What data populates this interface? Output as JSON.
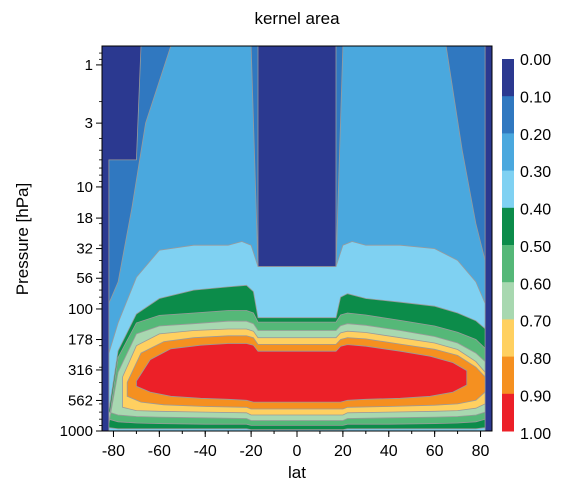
{
  "chart_data": {
    "type": "contour",
    "title": "kernel area",
    "xlabel": "lat",
    "ylabel": "Pressure [hPa]",
    "xlim": [
      -85,
      85
    ],
    "ylim": [
      1000,
      0.7
    ],
    "y_scale": "log",
    "x_ticks": [
      "-80",
      "-60",
      "-40",
      "-20",
      "0",
      "20",
      "40",
      "60",
      "80"
    ],
    "x_tick_values": [
      -80,
      -60,
      -40,
      -20,
      0,
      20,
      40,
      60,
      80
    ],
    "y_ticks": [
      "1",
      "3",
      "10",
      "18",
      "32",
      "56",
      "100",
      "178",
      "316",
      "562",
      "1000"
    ],
    "y_tick_values": [
      1,
      3,
      10,
      18,
      32,
      56,
      100,
      178,
      316,
      562,
      1000
    ],
    "colorbar": {
      "labels": [
        "0.00",
        "0.10",
        "0.20",
        "0.30",
        "0.40",
        "0.50",
        "0.60",
        "0.70",
        "0.80",
        "0.90",
        "1.00"
      ],
      "colors": [
        "#2b3990",
        "#3078c0",
        "#4aa8de",
        "#7fd1f2",
        "#0c8c4a",
        "#55b878",
        "#a8d8b0",
        "#ffd060",
        "#f59020",
        "#ec2028"
      ]
    },
    "contour_levels": [
      {
        "level": 0.1,
        "color": "#3078c0",
        "x": [
          -82,
          -70,
          -68,
          -65,
          -40,
          -25,
          -20,
          -17,
          -17,
          17,
          17,
          20,
          25,
          40,
          65,
          70,
          82
        ],
        "p": [
          6,
          6,
          0.7,
          0.7,
          0.7,
          0.7,
          0.7,
          0.7,
          70,
          70,
          0.7,
          0.7,
          0.7,
          0.7,
          0.7,
          0.7,
          0.7
        ]
      },
      {
        "level": 0.2,
        "color": "#4aa8de",
        "x": [
          -82,
          -78,
          -72,
          -66,
          -55,
          -40,
          -30,
          -22,
          -20,
          -17,
          -17,
          17,
          17,
          20,
          22,
          30,
          40,
          55,
          65,
          72,
          78,
          82
        ],
        "p": [
          90,
          60,
          15,
          3,
          0.7,
          0.7,
          0.7,
          0.7,
          0.7,
          45,
          45,
          45,
          45,
          0.7,
          0.7,
          0.7,
          0.7,
          0.7,
          0.7,
          5,
          20,
          40
        ]
      },
      {
        "level": 0.3,
        "color": "#7fd1f2",
        "x": [
          -82,
          -78,
          -70,
          -60,
          -45,
          -30,
          -24,
          -20,
          -17,
          -17,
          17,
          17,
          20,
          24,
          30,
          45,
          60,
          70,
          78,
          82
        ],
        "p": [
          230,
          130,
          55,
          33,
          30,
          30,
          28,
          30,
          45,
          45,
          45,
          45,
          30,
          28,
          30,
          30,
          32,
          40,
          60,
          90
        ]
      },
      {
        "level": 0.4,
        "color": "#0c8c4a",
        "x": [
          -82,
          -78,
          -70,
          -60,
          -45,
          -30,
          -22,
          -19,
          -17,
          -17,
          17,
          17,
          19,
          22,
          30,
          45,
          60,
          70,
          78,
          82
        ],
        "p": [
          680,
          220,
          110,
          82,
          70,
          66,
          64,
          72,
          118,
          118,
          118,
          118,
          80,
          75,
          82,
          88,
          95,
          108,
          125,
          145
        ]
      },
      {
        "level": 0.5,
        "color": "#55b878",
        "x": [
          -82,
          -78,
          -70,
          -60,
          -45,
          -30,
          -22,
          -19,
          -17,
          -17,
          17,
          17,
          19,
          22,
          30,
          45,
          60,
          70,
          78,
          82
        ],
        "p": [
          820,
          250,
          130,
          113,
          108,
          103,
          103,
          108,
          128,
          128,
          128,
          128,
          112,
          108,
          112,
          124,
          138,
          155,
          178,
          210
        ]
      },
      {
        "level": 0.6,
        "color": "#a8d8b0",
        "x": [
          -82,
          -78,
          -70,
          -60,
          -45,
          -30,
          -22,
          -19,
          -17,
          -17,
          17,
          17,
          19,
          22,
          30,
          45,
          60,
          70,
          78,
          82
        ],
        "p": [
          860,
          330,
          160,
          138,
          132,
          126,
          126,
          132,
          150,
          150,
          150,
          150,
          137,
          132,
          136,
          150,
          168,
          190,
          230,
          270
        ]
      },
      {
        "level": 0.7,
        "color": "#ffd060",
        "x": [
          -76,
          -70,
          -60,
          -45,
          -30,
          -22,
          -19,
          -17,
          -17,
          17,
          17,
          19,
          22,
          30,
          45,
          60,
          70,
          78,
          82
        ],
        "p": [
          360,
          200,
          160,
          150,
          146,
          146,
          152,
          172,
          172,
          172,
          172,
          157,
          152,
          156,
          172,
          190,
          215,
          270,
          330
        ]
      },
      {
        "level": 0.8,
        "color": "#f59020",
        "x": [
          -74,
          -68,
          -58,
          -45,
          -30,
          -22,
          -19,
          -17,
          -17,
          17,
          17,
          19,
          22,
          30,
          45,
          60,
          70,
          78,
          82
        ],
        "p": [
          400,
          230,
          185,
          172,
          166,
          166,
          172,
          195,
          195,
          195,
          195,
          178,
          172,
          176,
          194,
          214,
          240,
          300,
          360
        ]
      },
      {
        "level": 0.9,
        "color": "#ec2028",
        "x": [
          -70,
          -64,
          -55,
          -42,
          -30,
          -22,
          -19,
          -17,
          -17,
          17,
          17,
          19,
          22,
          30,
          45,
          58,
          68,
          74
        ],
        "p": [
          390,
          260,
          212,
          198,
          192,
          192,
          198,
          222,
          222,
          222,
          222,
          202,
          196,
          202,
          222,
          244,
          275,
          320
        ]
      }
    ],
    "lower_edges": [
      {
        "level": 0.1,
        "x": [
          82,
          70,
          60,
          40,
          20,
          17,
          15,
          -15,
          -17,
          -20,
          -40,
          -60,
          -70,
          -82
        ],
        "p": [
          1000,
          1000,
          1000,
          1000,
          1000,
          1000,
          1000,
          1000,
          1000,
          1000,
          1000,
          1000,
          1000,
          1000
        ]
      },
      {
        "level": 0.2,
        "x": [
          82,
          70,
          60,
          40,
          20,
          17,
          15,
          -15,
          -17,
          -20,
          -40,
          -60,
          -70,
          -82
        ],
        "p": [
          1000,
          1000,
          1000,
          1000,
          1000,
          1000,
          1000,
          1000,
          1000,
          1000,
          1000,
          1000,
          1000,
          1000
        ]
      },
      {
        "level": 0.3,
        "x": [
          82,
          70,
          60,
          40,
          20,
          17,
          15,
          -15,
          -17,
          -20,
          -40,
          -60,
          -70,
          -82
        ],
        "p": [
          1000,
          1000,
          1000,
          1000,
          1000,
          1000,
          1000,
          1000,
          1000,
          1000,
          1000,
          1000,
          1000,
          1000
        ]
      },
      {
        "level": 0.4,
        "x": [
          82,
          78,
          70,
          60,
          40,
          22,
          20,
          17,
          -17,
          -20,
          -22,
          -40,
          -60,
          -70,
          -78,
          -82
        ],
        "p": [
          940,
          960,
          960,
          960,
          960,
          960,
          975,
          975,
          975,
          975,
          960,
          960,
          960,
          960,
          960,
          940
        ]
      },
      {
        "level": 0.5,
        "x": [
          82,
          78,
          70,
          60,
          40,
          22,
          20,
          17,
          -17,
          -20,
          -22,
          -40,
          -60,
          -70,
          -78,
          -82
        ],
        "p": [
          800,
          840,
          860,
          870,
          880,
          880,
          900,
          900,
          900,
          900,
          880,
          880,
          870,
          860,
          840,
          800
        ]
      },
      {
        "level": 0.6,
        "x": [
          82,
          78,
          70,
          60,
          40,
          22,
          20,
          17,
          -17,
          -20,
          -22,
          -40,
          -60,
          -70,
          -78,
          -82
        ],
        "p": [
          700,
          740,
          760,
          770,
          780,
          790,
          820,
          820,
          820,
          820,
          790,
          780,
          770,
          760,
          740,
          700
        ]
      },
      {
        "level": 0.7,
        "x": [
          82,
          78,
          70,
          60,
          40,
          22,
          20,
          17,
          -17,
          -20,
          -22,
          -40,
          -60,
          -70,
          -76
        ],
        "p": [
          600,
          650,
          680,
          690,
          700,
          710,
          740,
          740,
          740,
          740,
          710,
          700,
          690,
          680,
          640
        ]
      },
      {
        "level": 0.8,
        "x": [
          82,
          78,
          70,
          60,
          40,
          22,
          20,
          17,
          -17,
          -20,
          -22,
          -40,
          -58,
          -68,
          -74
        ],
        "p": [
          480,
          560,
          600,
          615,
          630,
          640,
          660,
          660,
          660,
          660,
          640,
          630,
          610,
          580,
          520
        ]
      },
      {
        "level": 0.9,
        "x": [
          74,
          68,
          58,
          45,
          30,
          22,
          19,
          17,
          -17,
          -19,
          -22,
          -30,
          -42,
          -55,
          -64,
          -70
        ],
        "p": [
          420,
          480,
          520,
          540,
          550,
          560,
          580,
          580,
          580,
          580,
          560,
          550,
          540,
          520,
          480,
          430
        ]
      }
    ]
  }
}
